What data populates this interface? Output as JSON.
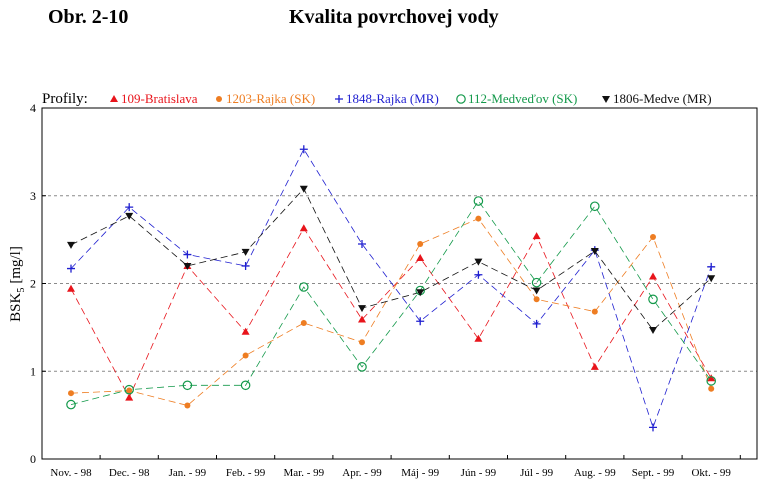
{
  "header": {
    "figure_label": "Obr. 2-10",
    "title": "Kvalita povrchovej vody"
  },
  "chart_data": {
    "type": "line",
    "legend_prefix": "Profily:",
    "ylabel_main": "BSK",
    "ylabel_sub": "5",
    "ylabel_unit": "[mg/l]",
    "ylim": [
      0,
      4
    ],
    "yticks": [
      0,
      1,
      2,
      3,
      4
    ],
    "grid": "horizontal dashed at 1, 2, 3",
    "legend_position": "top",
    "categories": [
      "Nov. - 98",
      "Dec. - 98",
      "Jan. - 99",
      "Feb. - 99",
      "Mar. - 99",
      "Apr. - 99",
      "Máj - 99",
      "Jún - 99",
      "Júl - 99",
      "Aug. - 99",
      "Sept. - 99",
      "Okt. - 99"
    ],
    "series": [
      {
        "name": "109-Bratislava",
        "color": "#e8141b",
        "marker": "triangle-up",
        "points": [
          {
            "x": "Nov. - 98",
            "y": 1.94
          },
          {
            "x": "Dec. - 98",
            "y": 0.7
          },
          {
            "x": "Jan. - 99",
            "y": 2.2
          },
          {
            "x": "Feb. - 99",
            "y": 1.45
          },
          {
            "x": "Mar. - 99",
            "y": 2.63
          },
          {
            "x": "Apr. - 99",
            "y": 1.59
          },
          {
            "x": "Máj - 99",
            "y": 2.29
          },
          {
            "x": "Jún - 99",
            "y": 1.37
          },
          {
            "x": "Júl - 99",
            "y": 2.54
          },
          {
            "x": "Aug. - 99",
            "y": 1.05
          },
          {
            "x": "Sept. - 99",
            "y": 2.08
          },
          {
            "x": "Okt. - 99",
            "y": 0.92
          }
        ]
      },
      {
        "name": "1203-Rajka (SK)",
        "color": "#ee7d22",
        "marker": "circle-filled",
        "points": [
          {
            "x": "Nov. - 98",
            "y": 0.75
          },
          {
            "x": "Dec. - 98",
            "y": 0.78
          },
          {
            "x": "Jan. - 99",
            "y": 0.61
          },
          {
            "x": "Feb. - 99",
            "y": 1.18
          },
          {
            "x": "Mar. - 99",
            "y": 1.55
          },
          {
            "x": "Apr. - 99",
            "y": 1.33
          },
          {
            "x": "Máj - 99",
            "y": 2.45
          },
          {
            "x": "Jún - 99",
            "y": 2.74
          },
          {
            "x": "Júl - 99",
            "y": 1.82
          },
          {
            "x": "Aug. - 99",
            "y": 1.68
          },
          {
            "x": "Sept. - 99",
            "y": 2.53
          },
          {
            "x": "Okt. - 99",
            "y": 0.8
          }
        ]
      },
      {
        "name": "1848-Rajka (MR)",
        "color": "#1f1fd0",
        "marker": "plus",
        "points": [
          {
            "x": "Nov. - 98",
            "y": 2.17
          },
          {
            "x": "Dec. - 98",
            "y": 2.87
          },
          {
            "x": "Jan. - 99",
            "y": 2.33
          },
          {
            "x": "Feb. - 99",
            "y": 2.2
          },
          {
            "x": "Mar. - 99",
            "y": 3.53
          },
          {
            "x": "Apr. - 99",
            "y": 2.45
          },
          {
            "x": "Máj - 99",
            "y": 1.57
          },
          {
            "x": "Jún - 99",
            "y": 2.1
          },
          {
            "x": "Júl - 99",
            "y": 1.54
          },
          {
            "x": "Aug. - 99",
            "y": 2.38
          },
          {
            "x": "Sept. - 99",
            "y": 0.36
          },
          {
            "x": "Okt. - 99",
            "y": 2.19
          }
        ]
      },
      {
        "name": "112-Medveďov (SK)",
        "color": "#13994a",
        "marker": "circle-open",
        "points": [
          {
            "x": "Nov. - 98",
            "y": 0.62
          },
          {
            "x": "Dec. - 98",
            "y": 0.79
          },
          {
            "x": "Jan. - 99",
            "y": 0.84
          },
          {
            "x": "Feb. - 99",
            "y": 0.84
          },
          {
            "x": "Mar. - 99",
            "y": 1.96
          },
          {
            "x": "Apr. - 99",
            "y": 1.05
          },
          {
            "x": "Máj - 99",
            "y": 1.92
          },
          {
            "x": "Jún - 99",
            "y": 2.94
          },
          {
            "x": "Júl - 99",
            "y": 2.01
          },
          {
            "x": "Aug. - 99",
            "y": 2.88
          },
          {
            "x": "Sept. - 99",
            "y": 1.82
          },
          {
            "x": "Okt. - 99",
            "y": 0.89
          }
        ]
      },
      {
        "name": "1806-Medve (MR)",
        "color": "#111111",
        "marker": "triangle-down",
        "points": [
          {
            "x": "Nov. - 98",
            "y": 2.44
          },
          {
            "x": "Dec. - 98",
            "y": 2.77
          },
          {
            "x": "Jan. - 99",
            "y": 2.2
          },
          {
            "x": "Feb. - 99",
            "y": 2.36
          },
          {
            "x": "Mar. - 99",
            "y": 3.08
          },
          {
            "x": "Apr. - 99",
            "y": 1.72
          },
          {
            "x": "Máj - 99",
            "y": 1.9
          },
          {
            "x": "Jún - 99",
            "y": 2.25
          },
          {
            "x": "Júl - 99",
            "y": 1.92
          },
          {
            "x": "Aug. - 99",
            "y": 2.37
          },
          {
            "x": "Sept. - 99",
            "y": 1.47
          },
          {
            "x": "Okt. - 99",
            "y": 2.06
          }
        ]
      }
    ]
  }
}
